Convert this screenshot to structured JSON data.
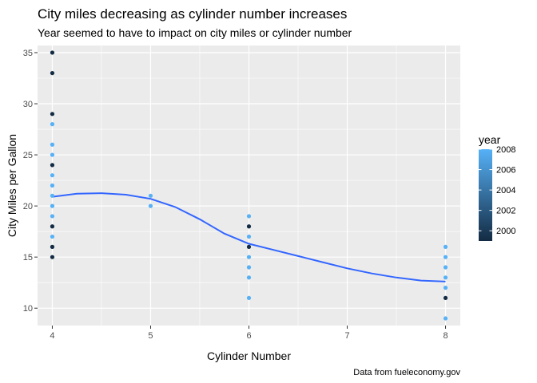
{
  "chart_data": {
    "type": "scatter",
    "title": "City miles decreasing as cylinder number increases",
    "subtitle": "Year seemed to have to impact on city miles or cylinder number",
    "xlabel": "Cylinder Number",
    "ylabel": "City Miles per Gallon",
    "caption": "Data from fueleconomy.gov",
    "xlim": [
      3.85,
      8.15
    ],
    "ylim": [
      8.3,
      35.7
    ],
    "x_ticks": [
      4,
      5,
      6,
      7,
      8
    ],
    "y_ticks": [
      10,
      15,
      20,
      25,
      30,
      35
    ],
    "grid": true,
    "legend": {
      "title": "year",
      "position": "right",
      "ticks": [
        2000,
        2002,
        2004,
        2006,
        2008
      ],
      "range": [
        1999,
        2008
      ],
      "color_low": "#132B43",
      "color_high": "#56B1F7"
    },
    "points": [
      {
        "x": 4,
        "y": 35,
        "year": 1999
      },
      {
        "x": 4,
        "y": 33,
        "year": 1999
      },
      {
        "x": 4,
        "y": 29,
        "year": 1999
      },
      {
        "x": 4,
        "y": 28,
        "year": 2008
      },
      {
        "x": 4,
        "y": 26,
        "year": 2008
      },
      {
        "x": 4,
        "y": 25,
        "year": 2008
      },
      {
        "x": 4,
        "y": 24,
        "year": 1999
      },
      {
        "x": 4,
        "y": 23,
        "year": 2008
      },
      {
        "x": 4,
        "y": 22,
        "year": 2008
      },
      {
        "x": 4,
        "y": 21,
        "year": 2008
      },
      {
        "x": 4,
        "y": 20,
        "year": 2008
      },
      {
        "x": 4,
        "y": 19,
        "year": 2008
      },
      {
        "x": 4,
        "y": 18,
        "year": 1999
      },
      {
        "x": 4,
        "y": 17,
        "year": 2008
      },
      {
        "x": 4,
        "y": 16,
        "year": 1999
      },
      {
        "x": 4,
        "y": 15,
        "year": 1999
      },
      {
        "x": 5,
        "y": 21,
        "year": 2008
      },
      {
        "x": 5,
        "y": 20,
        "year": 2008
      },
      {
        "x": 6,
        "y": 19,
        "year": 2008
      },
      {
        "x": 6,
        "y": 18,
        "year": 1999
      },
      {
        "x": 6,
        "y": 17,
        "year": 2008
      },
      {
        "x": 6,
        "y": 16,
        "year": 1999
      },
      {
        "x": 6,
        "y": 15,
        "year": 2008
      },
      {
        "x": 6,
        "y": 14,
        "year": 2008
      },
      {
        "x": 6,
        "y": 13,
        "year": 2008
      },
      {
        "x": 6,
        "y": 11,
        "year": 2008
      },
      {
        "x": 8,
        "y": 16,
        "year": 2008
      },
      {
        "x": 8,
        "y": 15,
        "year": 2008
      },
      {
        "x": 8,
        "y": 14,
        "year": 2008
      },
      {
        "x": 8,
        "y": 13,
        "year": 2008
      },
      {
        "x": 8,
        "y": 12,
        "year": 2008
      },
      {
        "x": 8,
        "y": 11,
        "year": 1999
      },
      {
        "x": 8,
        "y": 9,
        "year": 2008
      }
    ],
    "smooth": {
      "color": "#3366FF",
      "x": [
        4,
        4.25,
        4.5,
        4.75,
        5,
        5.25,
        5.5,
        5.75,
        6,
        6.25,
        6.5,
        6.75,
        7,
        7.25,
        7.5,
        7.75,
        8
      ],
      "y": [
        20.9,
        21.2,
        21.25,
        21.1,
        20.7,
        19.9,
        18.7,
        17.3,
        16.3,
        15.7,
        15.1,
        14.5,
        13.9,
        13.4,
        13.0,
        12.7,
        12.6
      ]
    }
  }
}
